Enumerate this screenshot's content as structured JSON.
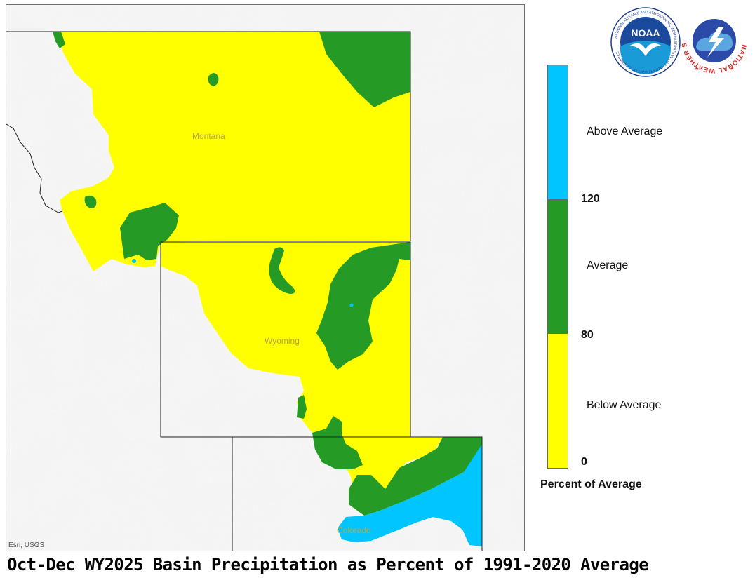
{
  "map": {
    "labels": {
      "montana": "Montana",
      "wyoming": "Wyoming",
      "colorado": "Colorado"
    },
    "attribution": "Esri, USGS",
    "colors": {
      "above_average": "#00c5ff",
      "average": "#259a25",
      "below_average": "#ffff00",
      "basemap": "#f4f4f4",
      "state_lines": "#222222"
    }
  },
  "legend": {
    "categories": {
      "above": "Above Average",
      "average": "Average",
      "below": "Below Average"
    },
    "breaks": {
      "high": "120",
      "mid": "80",
      "low": "0"
    },
    "title": "Percent of Average"
  },
  "logos": {
    "noaa": "NOAA",
    "noaa_ring": "NATIONAL OCEANIC AND ATMOSPHERIC ADMINISTRATION · U.S. DEPARTMENT OF COMMERCE",
    "nws": "NATIONAL WEATHER SERVICE"
  },
  "caption": "Oct-Dec WY2025 Basin Precipitation as Percent of 1991-2020 Average"
}
